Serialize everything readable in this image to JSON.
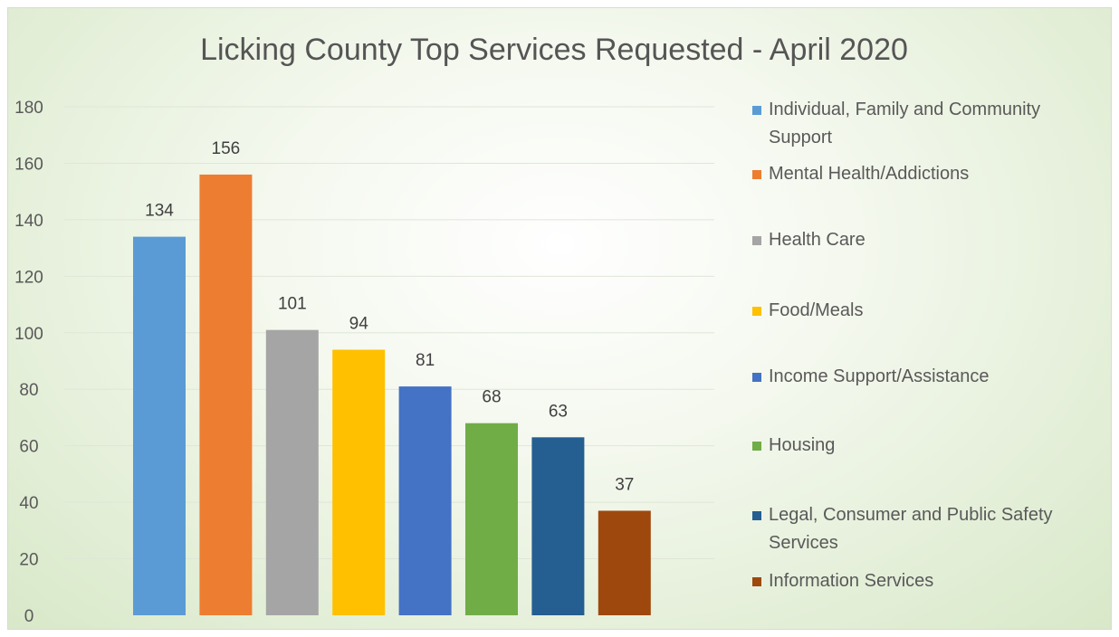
{
  "chart_data": {
    "type": "bar",
    "title": "Licking County Top Services Requested - April 2020",
    "ylim": [
      0,
      180
    ],
    "yticks": [
      0,
      20,
      40,
      60,
      80,
      100,
      120,
      140,
      160,
      180
    ],
    "grid": true,
    "legend_position": "right",
    "series": [
      {
        "name_lines": [
          "Individual, Family and Community",
          "Support"
        ],
        "value": 134,
        "color": "#5b9bd5"
      },
      {
        "name_lines": [
          "Mental Health/Addictions"
        ],
        "value": 156,
        "color": "#ed7d31"
      },
      {
        "name_lines": [
          "Health Care"
        ],
        "value": 101,
        "color": "#a5a5a5"
      },
      {
        "name_lines": [
          "Food/Meals"
        ],
        "value": 94,
        "color": "#ffc000"
      },
      {
        "name_lines": [
          "Income Support/Assistance"
        ],
        "value": 81,
        "color": "#4472c4"
      },
      {
        "name_lines": [
          "Housing"
        ],
        "value": 68,
        "color": "#70ad47"
      },
      {
        "name_lines": [
          "Legal, Consumer and Public Safety",
          "Services"
        ],
        "value": 63,
        "color": "#255e91"
      },
      {
        "name_lines": [
          "Information Services"
        ],
        "value": 37,
        "color": "#9e480e"
      }
    ]
  }
}
